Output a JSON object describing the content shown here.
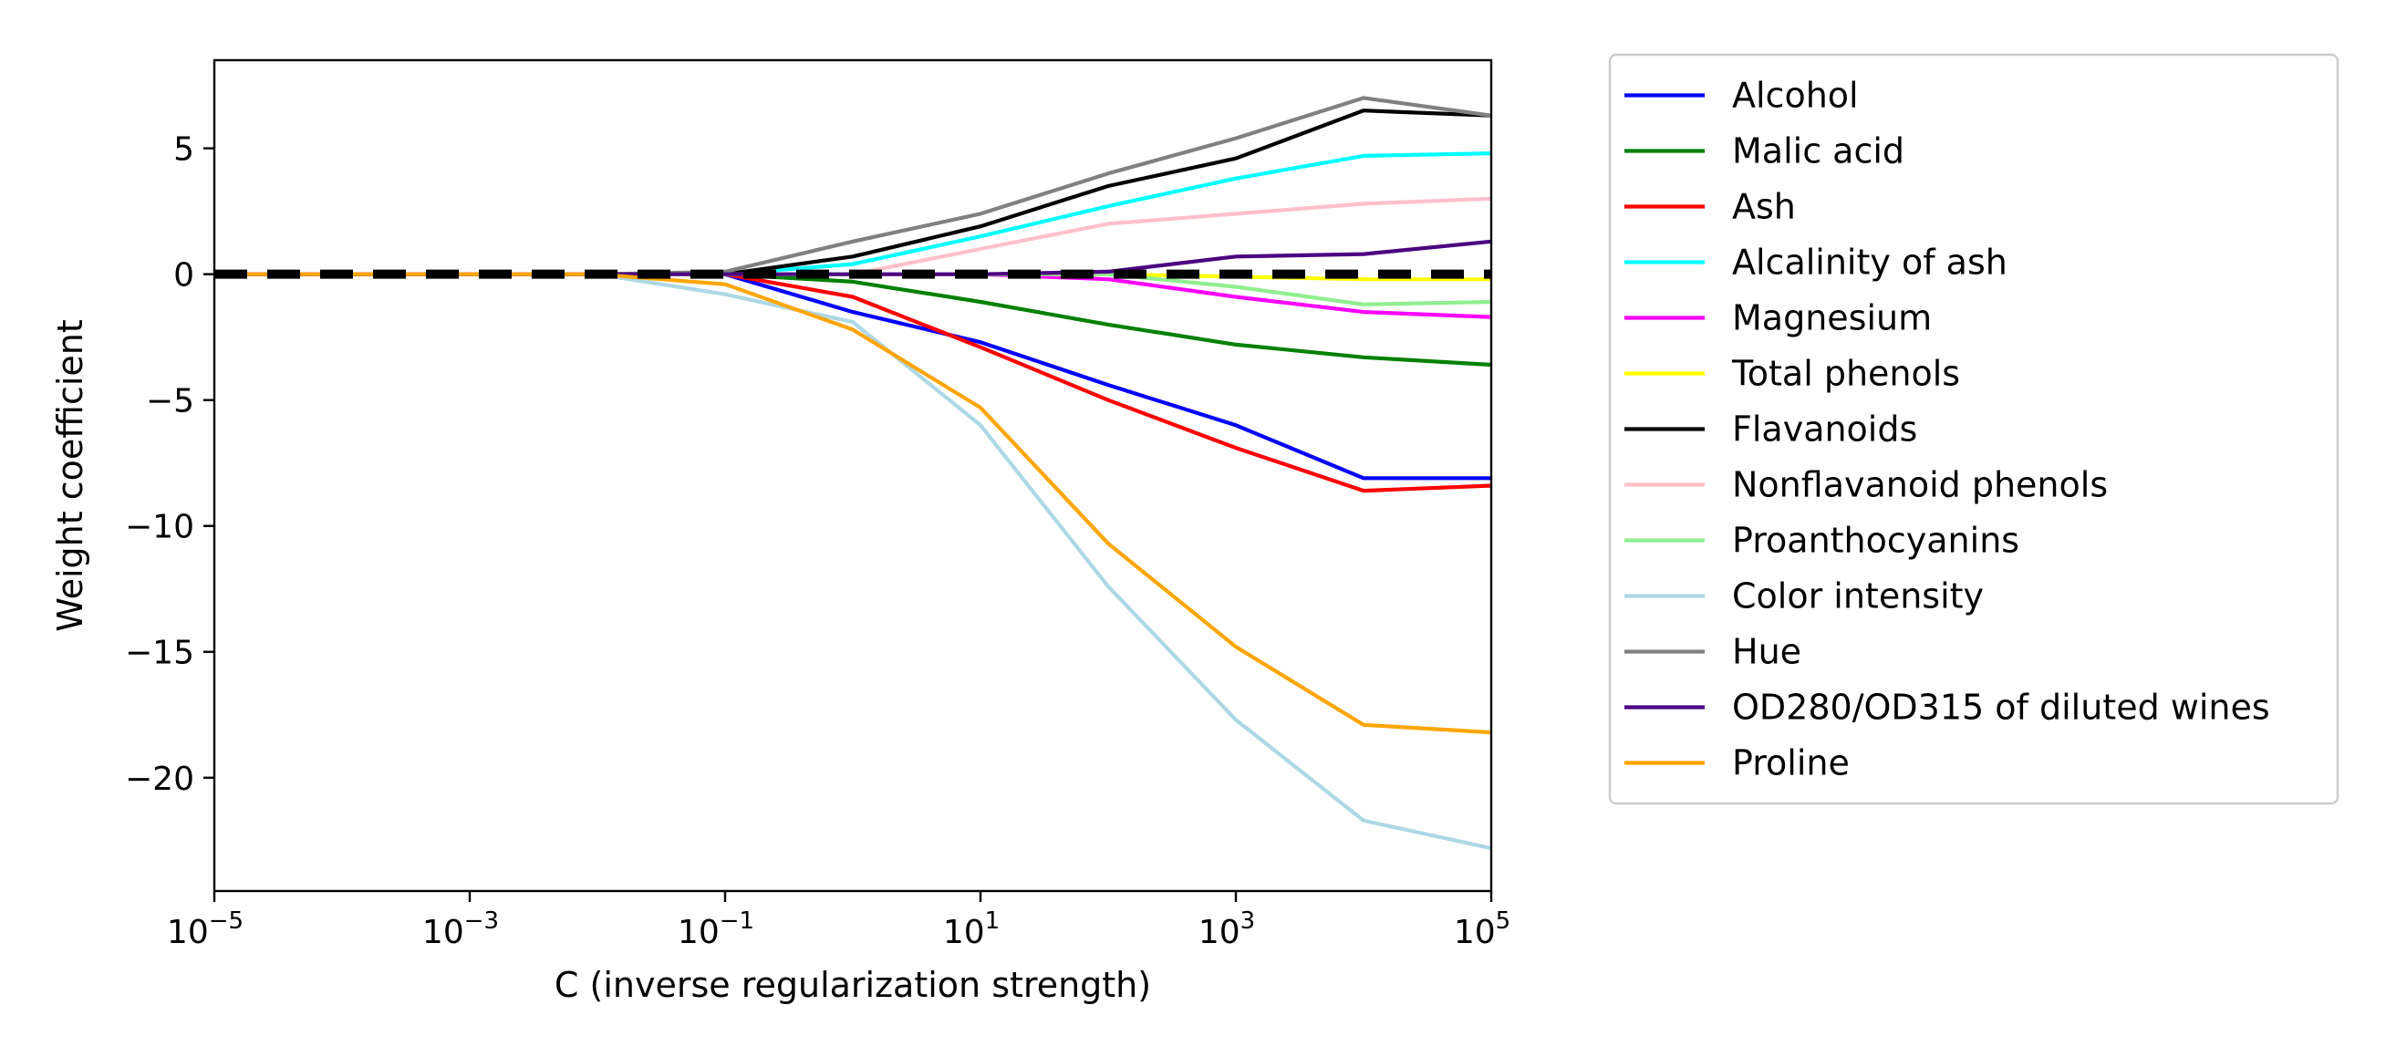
{
  "chart_data": {
    "type": "line",
    "title": "",
    "xlabel": "C (inverse regularization strength)",
    "ylabel": "Weight coefficient",
    "x_scale": "log",
    "x": [
      1e-05,
      0.0001,
      0.001,
      0.01,
      0.1,
      1,
      10,
      100,
      1000,
      10000,
      100000
    ],
    "xlim": [
      1e-05,
      100000
    ],
    "ylim": [
      -24.5,
      8.5
    ],
    "x_ticks": [
      {
        "value": 1e-05,
        "base": "10",
        "exp": "−5"
      },
      {
        "value": 0.001,
        "base": "10",
        "exp": "−3"
      },
      {
        "value": 0.1,
        "base": "10",
        "exp": "−1"
      },
      {
        "value": 10,
        "base": "10",
        "exp": "1"
      },
      {
        "value": 1000,
        "base": "10",
        "exp": "3"
      },
      {
        "value": 100000,
        "base": "10",
        "exp": "5"
      }
    ],
    "y_ticks": [
      {
        "value": 5,
        "label": "5"
      },
      {
        "value": 0,
        "label": "0"
      },
      {
        "value": -5,
        "label": "−5"
      },
      {
        "value": -10,
        "label": "−10"
      },
      {
        "value": -15,
        "label": "−15"
      },
      {
        "value": -20,
        "label": "−20"
      }
    ],
    "grid": false,
    "legend_position": "outside-right",
    "reference_line": {
      "y": 0,
      "color": "#000000",
      "style": "dashed"
    },
    "series": [
      {
        "name": "Alcohol",
        "color": "#0000ff",
        "values": [
          0,
          0,
          0,
          0,
          0,
          -1.5,
          -2.7,
          -4.4,
          -6.0,
          -8.1,
          -8.1
        ]
      },
      {
        "name": "Malic acid",
        "color": "#008000",
        "values": [
          0,
          0,
          0,
          0,
          0,
          -0.3,
          -1.1,
          -2.0,
          -2.8,
          -3.3,
          -3.6
        ]
      },
      {
        "name": "Ash",
        "color": "#ff0000",
        "values": [
          0,
          0,
          0,
          0,
          0,
          -0.9,
          -2.9,
          -5.0,
          -6.9,
          -8.6,
          -8.4
        ]
      },
      {
        "name": "Alcalinity of ash",
        "color": "#00ffff",
        "values": [
          0,
          0,
          0,
          0,
          0,
          0.4,
          1.5,
          2.7,
          3.8,
          4.7,
          4.8
        ]
      },
      {
        "name": "Magnesium",
        "color": "#ff00ff",
        "values": [
          0,
          0,
          0,
          0,
          0,
          0,
          0,
          -0.2,
          -0.9,
          -1.5,
          -1.7
        ]
      },
      {
        "name": "Total phenols",
        "color": "#ffff00",
        "values": [
          0,
          0,
          0,
          0,
          0,
          0,
          0,
          0,
          -0.1,
          -0.2,
          -0.2
        ]
      },
      {
        "name": "Flavanoids",
        "color": "#000000",
        "values": [
          0,
          0,
          0,
          0,
          0,
          0.7,
          1.9,
          3.5,
          4.6,
          6.5,
          6.3
        ]
      },
      {
        "name": "Nonflavanoid phenols",
        "color": "#ffc0cb",
        "values": [
          0,
          0,
          0,
          0,
          0,
          0,
          1.0,
          2.0,
          2.4,
          2.8,
          3.0
        ]
      },
      {
        "name": "Proanthocyanins",
        "color": "#90ee90",
        "values": [
          0,
          0,
          0,
          0,
          0,
          0,
          0,
          0,
          -0.5,
          -1.2,
          -1.1
        ]
      },
      {
        "name": "Color intensity",
        "color": "#add8e6",
        "values": [
          0,
          0,
          0,
          0,
          -0.8,
          -1.9,
          -6.0,
          -12.4,
          -17.7,
          -21.7,
          -22.8
        ]
      },
      {
        "name": "Hue",
        "color": "#808080",
        "values": [
          0,
          0,
          0,
          0,
          0.1,
          1.3,
          2.4,
          4.0,
          5.4,
          7.0,
          6.3
        ]
      },
      {
        "name": "OD280/OD315 of diluted wines",
        "color": "#4b0082",
        "values": [
          0,
          0,
          0,
          0,
          0,
          0,
          0,
          0.1,
          0.7,
          0.8,
          1.3
        ]
      },
      {
        "name": "Proline",
        "color": "#ffa500",
        "values": [
          0,
          0,
          0,
          0,
          -0.4,
          -2.2,
          -5.3,
          -10.7,
          -14.8,
          -17.9,
          -18.2
        ]
      }
    ]
  }
}
